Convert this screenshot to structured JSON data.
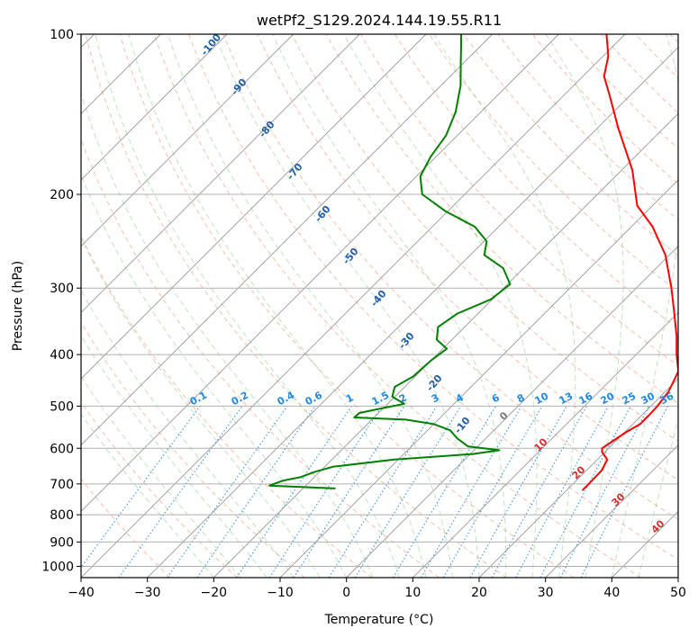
{
  "chart_data": {
    "type": "skew-t",
    "title": "wetPf2_S129.2024.144.19.55.R11",
    "xlabel": "Temperature (°C)",
    "ylabel": "Pressure (hPa)",
    "xlim": [
      -40,
      50
    ],
    "ylim": [
      1050,
      100
    ],
    "yscale": "log",
    "x_ticks": [
      -40,
      -30,
      -20,
      -10,
      0,
      10,
      20,
      30,
      40,
      50
    ],
    "y_ticks": [
      100,
      200,
      300,
      400,
      500,
      600,
      700,
      800,
      900,
      1000
    ],
    "grid": true,
    "skewed_isotherms": true,
    "series": [
      {
        "name": "temperature",
        "color": "#ff0000",
        "points": [
          {
            "p": 720,
            "t": 22.4
          },
          {
            "p": 700,
            "t": 22.4
          },
          {
            "p": 660,
            "t": 22.3
          },
          {
            "p": 630,
            "t": 21.5
          },
          {
            "p": 610,
            "t": 19.6
          },
          {
            "p": 600,
            "t": 19.0
          },
          {
            "p": 580,
            "t": 19.6
          },
          {
            "p": 560,
            "t": 20.2
          },
          {
            "p": 540,
            "t": 21.1
          },
          {
            "p": 520,
            "t": 21.1
          },
          {
            "p": 500,
            "t": 21.0
          },
          {
            "p": 470,
            "t": 20.5
          },
          {
            "p": 430,
            "t": 18.9
          },
          {
            "p": 400,
            "t": 16.1
          },
          {
            "p": 370,
            "t": 13.4
          },
          {
            "p": 330,
            "t": 9.0
          },
          {
            "p": 300,
            "t": 5.3
          },
          {
            "p": 260,
            "t": -0.6
          },
          {
            "p": 230,
            "t": -6.8
          },
          {
            "p": 210,
            "t": -12.3
          },
          {
            "p": 180,
            "t": -18.4
          },
          {
            "p": 150,
            "t": -26.9
          },
          {
            "p": 130,
            "t": -33.2
          },
          {
            "p": 120,
            "t": -36.8
          },
          {
            "p": 110,
            "t": -39.2
          },
          {
            "p": 100,
            "t": -42.8
          }
        ]
      },
      {
        "name": "dewpoint",
        "color": "#008000",
        "points": [
          {
            "p": 714,
            "t": -15.1
          },
          {
            "p": 705,
            "t": -25.5
          },
          {
            "p": 690,
            "t": -24.2
          },
          {
            "p": 680,
            "t": -22.1
          },
          {
            "p": 665,
            "t": -20.8
          },
          {
            "p": 650,
            "t": -18.8
          },
          {
            "p": 630,
            "t": -10.6
          },
          {
            "p": 615,
            "t": 0.4
          },
          {
            "p": 605,
            "t": 3.8
          },
          {
            "p": 595,
            "t": -1.5
          },
          {
            "p": 575,
            "t": -4.3
          },
          {
            "p": 555,
            "t": -6.6
          },
          {
            "p": 540,
            "t": -10.1
          },
          {
            "p": 530,
            "t": -14.9
          },
          {
            "p": 525,
            "t": -23.0
          },
          {
            "p": 515,
            "t": -22.9
          },
          {
            "p": 505,
            "t": -20.3
          },
          {
            "p": 495,
            "t": -17.5
          },
          {
            "p": 480,
            "t": -20.4
          },
          {
            "p": 460,
            "t": -21.5
          },
          {
            "p": 440,
            "t": -20.3
          },
          {
            "p": 410,
            "t": -20.0
          },
          {
            "p": 390,
            "t": -19.4
          },
          {
            "p": 375,
            "t": -22.3
          },
          {
            "p": 355,
            "t": -24.0
          },
          {
            "p": 335,
            "t": -23.1
          },
          {
            "p": 315,
            "t": -20.2
          },
          {
            "p": 295,
            "t": -19.6
          },
          {
            "p": 275,
            "t": -23.1
          },
          {
            "p": 260,
            "t": -27.9
          },
          {
            "p": 245,
            "t": -29.6
          },
          {
            "p": 230,
            "t": -33.6
          },
          {
            "p": 215,
            "t": -40.4
          },
          {
            "p": 200,
            "t": -46.4
          },
          {
            "p": 185,
            "t": -49.4
          },
          {
            "p": 170,
            "t": -50.8
          },
          {
            "p": 155,
            "t": -51.7
          },
          {
            "p": 140,
            "t": -53.8
          },
          {
            "p": 125,
            "t": -57.0
          },
          {
            "p": 113,
            "t": -60.5
          },
          {
            "p": 105,
            "t": -63.0
          },
          {
            "p": 100,
            "t": -64.7
          }
        ]
      }
    ],
    "reference_lines": {
      "isotherms": {
        "style": "solid",
        "color": "#999999",
        "step": 10
      },
      "dry_adiabats": {
        "style": "dashed",
        "color": "#f08b62"
      },
      "moist_adiabats": {
        "style": "dashed",
        "color": "#4caf50"
      },
      "mixing_ratio": {
        "style": "dotted",
        "color": "#1e88e5"
      }
    },
    "annotations": {
      "dry_adiabat_labels": [
        "-100",
        "-90",
        "-80",
        "-70",
        "-60",
        "-50",
        "-40",
        "-30",
        "-20",
        "-10"
      ],
      "mixing_ratio_labels": [
        "0.1",
        "0.2",
        "0.4",
        "0.6",
        "1",
        "1.5",
        "2",
        "3",
        "4",
        "6",
        "8",
        "10",
        "13",
        "16",
        "20",
        "25",
        "30",
        "36"
      ],
      "moist_adiabat_labels": [
        "0",
        "10",
        "20",
        "30",
        "40"
      ]
    }
  }
}
